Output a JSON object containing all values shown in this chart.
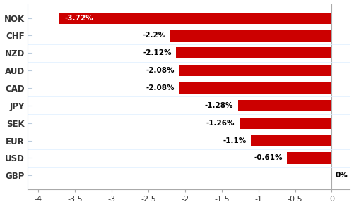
{
  "currencies": [
    "NOK",
    "CHF",
    "NZD",
    "AUD",
    "CAD",
    "JPY",
    "SEK",
    "EUR",
    "USD",
    "GBP"
  ],
  "values": [
    -3.72,
    -2.2,
    -2.12,
    -2.08,
    -2.08,
    -1.28,
    -1.26,
    -1.1,
    -0.61,
    0.0
  ],
  "labels": [
    "-3.72%",
    "-2.2%",
    "-2.12%",
    "-2.08%",
    "-2.08%",
    "-1.28%",
    "-1.26%",
    "-1.1%",
    "-0.61%",
    "0%"
  ],
  "bar_color": "#cc0000",
  "xlim": [
    -4.15,
    0.25
  ],
  "xticks": [
    -4,
    -3.5,
    -3,
    -2.5,
    -2,
    -1.5,
    -1,
    -0.5,
    0
  ],
  "background_color": "#ffffff",
  "label_fontsize": 7.5,
  "tick_fontsize": 8,
  "ylabel_fontsize": 8.5
}
